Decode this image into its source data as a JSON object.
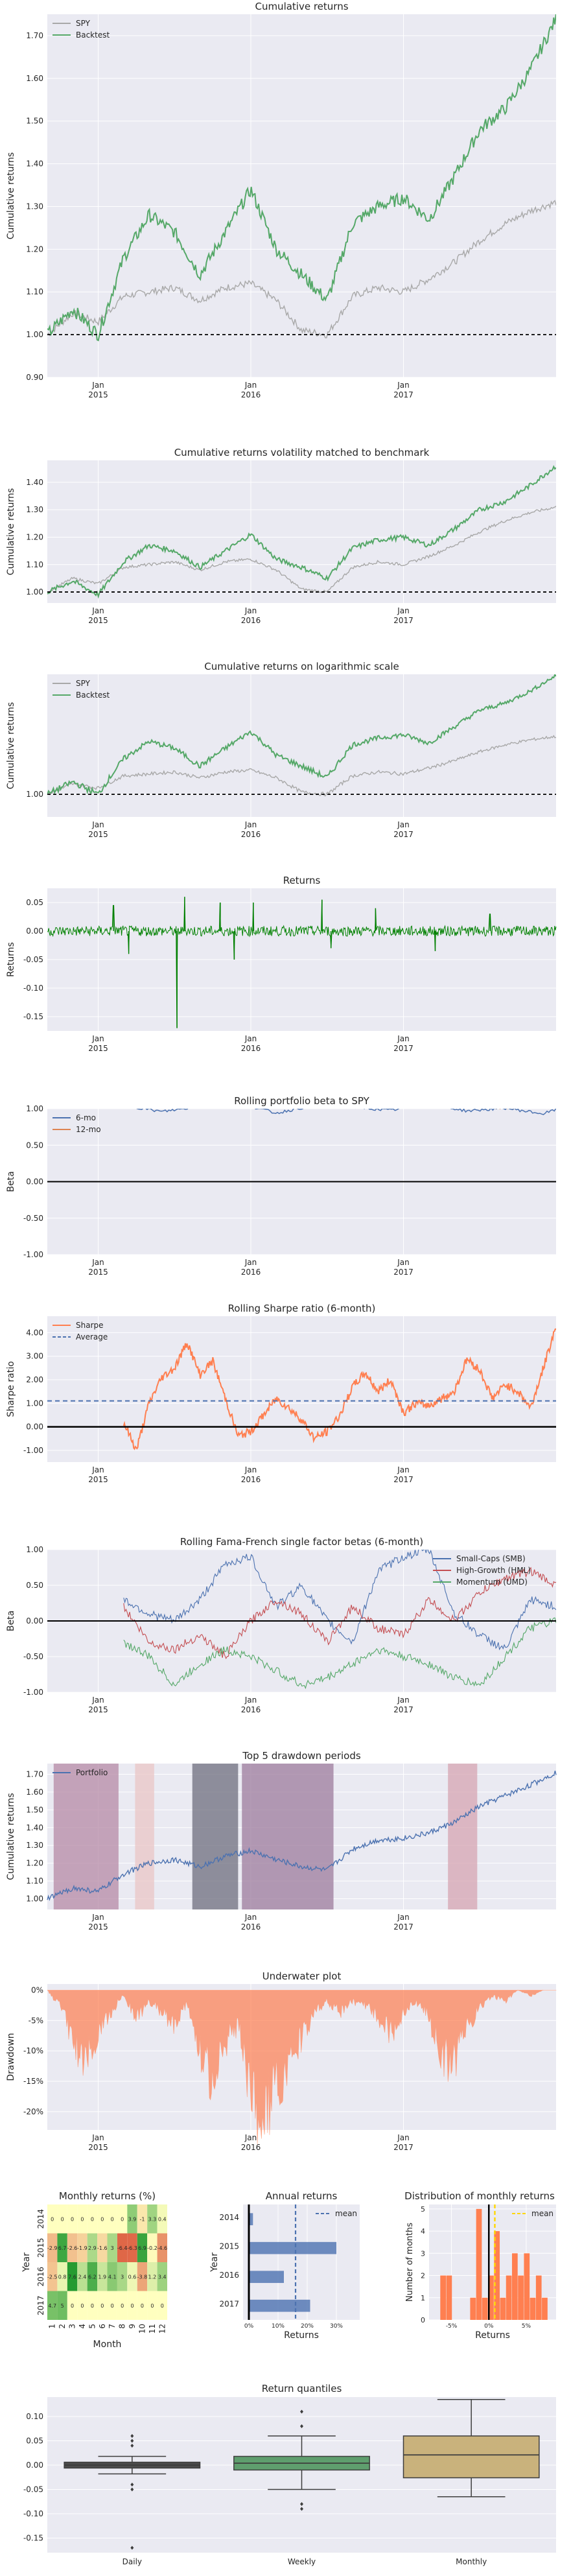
{
  "colors": {
    "plot_bg": "#eaeaf2",
    "grid": "#ffffff",
    "spy": "#a8a8a8",
    "backtest": "#55a868",
    "returns_line": "#008000",
    "beta6": "#4c72b0",
    "beta12": "#dd8452",
    "sharpe": "#ff7f50",
    "smb": "#4c72b0",
    "hml": "#c44e52",
    "umd": "#55a868",
    "portfolio": "#4c72b0",
    "underwater": "#ff7f50",
    "hist": "#ff7f50",
    "annual_bar": "#4c72b0",
    "mean_line": "#4c72b0",
    "hist_mean_line": "#ffd700",
    "box_daily": "#4c4c4c",
    "box_weekly": "#5f9e6e",
    "box_monthly": "#c9b27c"
  },
  "chart_data": [
    {
      "id": "cumret",
      "type": "line",
      "title": "Cumulative returns",
      "ylabel": "Cumulative returns",
      "xlabel": "",
      "x_ticks": [
        "Jan\n2015",
        "Jan\n2016",
        "Jan\n2017"
      ],
      "y_ticks": [
        "0.90",
        "1.00",
        "1.10",
        "1.20",
        "1.30",
        "1.40",
        "1.50",
        "1.60",
        "1.70"
      ],
      "ylim": [
        0.9,
        1.75
      ],
      "hline": 1.0,
      "legend": [
        "SPY",
        "Backtest"
      ],
      "legend_position": "upper-left",
      "x_months": [
        0,
        2,
        4,
        6,
        8,
        10,
        12,
        14,
        16,
        18,
        20,
        22,
        24,
        26,
        28,
        30,
        32,
        34,
        36,
        38,
        40
      ],
      "series": [
        {
          "name": "SPY",
          "values": [
            1.0,
            1.05,
            1.03,
            1.09,
            1.1,
            1.11,
            1.08,
            1.11,
            1.12,
            1.08,
            1.01,
            1.0,
            1.09,
            1.11,
            1.1,
            1.13,
            1.17,
            1.22,
            1.26,
            1.29,
            1.31
          ]
        },
        {
          "name": "Backtest",
          "values": [
            1.0,
            1.06,
            1.0,
            1.18,
            1.28,
            1.24,
            1.14,
            1.24,
            1.34,
            1.2,
            1.14,
            1.08,
            1.26,
            1.3,
            1.32,
            1.27,
            1.37,
            1.48,
            1.53,
            1.62,
            1.74
          ]
        }
      ]
    },
    {
      "id": "cumvol",
      "type": "line",
      "title": "Cumulative returns volatility matched to benchmark",
      "ylabel": "Cumulative returns",
      "x_ticks": [
        "Jan\n2015",
        "Jan\n2016",
        "Jan\n2017"
      ],
      "y_ticks": [
        "1.00",
        "1.10",
        "1.20",
        "1.30",
        "1.40"
      ],
      "ylim": [
        0.96,
        1.48
      ],
      "hline": 1.0,
      "x_months": [
        0,
        2,
        4,
        6,
        8,
        10,
        12,
        14,
        16,
        18,
        20,
        22,
        24,
        26,
        28,
        30,
        32,
        34,
        36,
        38,
        40
      ],
      "series": [
        {
          "name": "SPY",
          "values": [
            1.0,
            1.05,
            1.03,
            1.09,
            1.1,
            1.11,
            1.08,
            1.11,
            1.12,
            1.08,
            1.01,
            1.0,
            1.09,
            1.11,
            1.1,
            1.13,
            1.17,
            1.22,
            1.26,
            1.29,
            1.31
          ]
        },
        {
          "name": "Backtest",
          "values": [
            1.0,
            1.04,
            0.99,
            1.11,
            1.17,
            1.15,
            1.09,
            1.15,
            1.21,
            1.12,
            1.09,
            1.05,
            1.16,
            1.19,
            1.2,
            1.17,
            1.23,
            1.3,
            1.33,
            1.39,
            1.46
          ]
        }
      ]
    },
    {
      "id": "cumlog",
      "type": "line",
      "title": "Cumulative returns on logarithmic scale",
      "ylabel": "Cumulative returns",
      "x_ticks": [
        "Jan\n2015",
        "Jan\n2016",
        "Jan\n2017"
      ],
      "y_ticks": [
        "1.00"
      ],
      "ylim": [
        0.9,
        1.75
      ],
      "log_scale": true,
      "hline": 1.0,
      "legend": [
        "SPY",
        "Backtest"
      ],
      "legend_position": "upper-left",
      "x_months": [
        0,
        2,
        4,
        6,
        8,
        10,
        12,
        14,
        16,
        18,
        20,
        22,
        24,
        26,
        28,
        30,
        32,
        34,
        36,
        38,
        40
      ],
      "series": [
        {
          "name": "SPY",
          "values": [
            1.0,
            1.05,
            1.03,
            1.09,
            1.1,
            1.11,
            1.08,
            1.11,
            1.12,
            1.08,
            1.01,
            1.0,
            1.09,
            1.11,
            1.1,
            1.13,
            1.17,
            1.22,
            1.26,
            1.29,
            1.31
          ]
        },
        {
          "name": "Backtest",
          "values": [
            1.0,
            1.06,
            1.0,
            1.18,
            1.28,
            1.24,
            1.14,
            1.24,
            1.34,
            1.2,
            1.14,
            1.08,
            1.26,
            1.3,
            1.32,
            1.27,
            1.37,
            1.48,
            1.53,
            1.62,
            1.74
          ]
        }
      ]
    },
    {
      "id": "returns",
      "type": "line",
      "title": "Returns",
      "ylabel": "Returns",
      "x_ticks": [
        "Jan\n2015",
        "Jan\n2016",
        "Jan\n2017"
      ],
      "y_ticks": [
        "-0.15",
        "-0.10",
        "-0.05",
        "0.00",
        "0.05"
      ],
      "ylim": [
        -0.175,
        0.075
      ],
      "spikes": [
        [
          5.2,
          0.045
        ],
        [
          6.4,
          -0.04
        ],
        [
          10.2,
          -0.17
        ],
        [
          10.8,
          0.06
        ],
        [
          13.6,
          0.05
        ],
        [
          14.7,
          -0.05
        ],
        [
          16.2,
          0.05
        ],
        [
          21.6,
          0.055
        ],
        [
          22.3,
          -0.03
        ],
        [
          25.8,
          0.04
        ],
        [
          30.5,
          -0.035
        ],
        [
          34.8,
          0.03
        ]
      ]
    },
    {
      "id": "beta",
      "type": "line",
      "title": "Rolling portfolio beta to SPY",
      "ylabel": "Beta",
      "x_ticks": [
        "Jan\n2015",
        "Jan\n2016",
        "Jan\n2017"
      ],
      "y_ticks": [
        "-1.00",
        "-0.50",
        "0.00",
        "0.50",
        "1.00"
      ],
      "ylim": [
        -1.0,
        1.0
      ],
      "hline": 0.0,
      "legend": [
        "6-mo",
        "12-mo"
      ],
      "legend_position": "upper-left",
      "x_months": [
        6,
        9,
        12,
        15,
        18,
        21,
        24,
        27,
        30,
        33,
        36,
        39,
        40
      ],
      "series": [
        {
          "name": "6-mo",
          "values": [
            1.05,
            0.96,
            1.03,
            1.08,
            0.94,
            1.05,
            1.02,
            0.98,
            1.06,
            0.97,
            1.01,
            0.93,
            0.99
          ]
        },
        {
          "name": "12-mo",
          "values": [
            1.06,
            1.05,
            1.04,
            1.07,
            1.05,
            1.03,
            1.06,
            1.04,
            1.05,
            1.03,
            1.02,
            1.04,
            1.03
          ]
        }
      ]
    },
    {
      "id": "sharpe",
      "type": "line",
      "title": "Rolling Sharpe ratio (6-month)",
      "ylabel": "Sharpe ratio",
      "x_ticks": [
        "Jan\n2015",
        "Jan\n2016",
        "Jan\n2017"
      ],
      "y_ticks": [
        "-1.00",
        "0.00",
        "1.00",
        "2.00",
        "3.00",
        "4.00"
      ],
      "ylim": [
        -1.5,
        4.7
      ],
      "hline": 0.0,
      "average": 1.1,
      "legend": [
        "Sharpe",
        "Average"
      ],
      "legend_position": "upper-left",
      "x_months": [
        6,
        7,
        8,
        9,
        10,
        11,
        12,
        13,
        14,
        15,
        16,
        17,
        18,
        19,
        20,
        21,
        22,
        23,
        24,
        25,
        26,
        27,
        28,
        29,
        30,
        31,
        32,
        33,
        34,
        35,
        36,
        37,
        38,
        39,
        40
      ],
      "series": [
        {
          "name": "Sharpe",
          "values": [
            0.2,
            -1.0,
            1.0,
            2.1,
            2.5,
            3.6,
            2.2,
            2.8,
            1.2,
            -0.4,
            -0.2,
            0.5,
            1.2,
            0.8,
            0.3,
            -0.5,
            -0.2,
            0.5,
            1.7,
            2.3,
            1.5,
            2.0,
            0.6,
            1.0,
            0.9,
            1.2,
            1.5,
            2.9,
            2.4,
            1.2,
            1.8,
            1.5,
            0.8,
            2.5,
            4.3
          ]
        }
      ]
    },
    {
      "id": "famafrench",
      "type": "line",
      "title": "Rolling Fama-French single factor betas (6-month)",
      "ylabel": "Beta",
      "x_ticks": [
        "Jan\n2015",
        "Jan\n2016",
        "Jan\n2017"
      ],
      "y_ticks": [
        "-1.00",
        "-0.50",
        "0.00",
        "0.50",
        "1.00"
      ],
      "ylim": [
        -1.0,
        1.0
      ],
      "hline": 0.0,
      "legend": [
        "Small-Caps (SMB)",
        "High-Growth (HML)",
        "Momentum (UMD)"
      ],
      "legend_position": "upper-right",
      "x_months": [
        6,
        8,
        10,
        12,
        14,
        16,
        18,
        20,
        22,
        24,
        26,
        28,
        30,
        32,
        34,
        36,
        38,
        40
      ],
      "series": [
        {
          "name": "Small-Caps (SMB)",
          "values": [
            0.3,
            0.1,
            0.0,
            0.3,
            0.8,
            0.9,
            0.2,
            0.5,
            0.0,
            -0.3,
            0.7,
            0.9,
            1.0,
            0.1,
            -0.2,
            -0.4,
            0.3,
            0.2
          ]
        },
        {
          "name": "High-Growth (HML)",
          "values": [
            0.2,
            -0.3,
            -0.4,
            -0.2,
            -0.5,
            0.0,
            0.3,
            0.1,
            -0.3,
            0.2,
            -0.1,
            -0.2,
            0.3,
            0.0,
            0.4,
            0.6,
            0.7,
            0.5
          ]
        },
        {
          "name": "Momentum (UMD)",
          "values": [
            -0.3,
            -0.5,
            -0.9,
            -0.6,
            -0.4,
            -0.5,
            -0.7,
            -0.9,
            -0.8,
            -0.6,
            -0.4,
            -0.5,
            -0.6,
            -0.8,
            -0.9,
            -0.5,
            -0.1,
            0.0
          ]
        }
      ]
    },
    {
      "id": "drawdowns",
      "type": "line",
      "title": "Top 5 drawdown periods",
      "ylabel": "Cumulative returns",
      "x_ticks": [
        "Jan\n2015",
        "Jan\n2016",
        "Jan\n2017"
      ],
      "y_ticks": [
        "1.00",
        "1.10",
        "1.20",
        "1.30",
        "1.40",
        "1.50",
        "1.60",
        "1.70"
      ],
      "ylim": [
        0.94,
        1.76
      ],
      "legend": [
        "Portfolio"
      ],
      "legend_position": "upper-left",
      "shaded_periods_months": [
        [
          0.5,
          5.6
        ],
        [
          6.9,
          8.4
        ],
        [
          11.4,
          15.0
        ],
        [
          15.3,
          22.5
        ],
        [
          31.5,
          33.8
        ]
      ],
      "shade_colors": [
        "#b58aa6",
        "#e9c5c5",
        "#6e6e7e",
        "#9c7b9c",
        "#d6a4b2"
      ],
      "x_months": [
        0,
        2,
        4,
        6,
        8,
        10,
        12,
        14,
        16,
        18,
        20,
        22,
        24,
        26,
        28,
        30,
        32,
        34,
        36,
        38,
        40
      ],
      "series": [
        {
          "name": "Portfolio",
          "values": [
            1.0,
            1.06,
            1.04,
            1.14,
            1.2,
            1.22,
            1.18,
            1.24,
            1.27,
            1.22,
            1.18,
            1.16,
            1.28,
            1.33,
            1.34,
            1.37,
            1.43,
            1.52,
            1.58,
            1.64,
            1.71
          ]
        }
      ]
    },
    {
      "id": "underwater",
      "type": "area",
      "title": "Underwater plot",
      "ylabel": "Drawdown",
      "x_ticks": [
        "Jan\n2015",
        "Jan\n2016",
        "Jan\n2017"
      ],
      "y_ticks": [
        "0%",
        "-5%",
        "-10%",
        "-15%",
        "-20%"
      ],
      "ylim": [
        -0.23,
        0.01
      ],
      "x_months": [
        0,
        1,
        2,
        3,
        4,
        5,
        6,
        7,
        8,
        9,
        10,
        11,
        12,
        13,
        14,
        15,
        16,
        17,
        18,
        19,
        20,
        21,
        22,
        23,
        24,
        25,
        26,
        27,
        28,
        29,
        30,
        31,
        32,
        33,
        34,
        35,
        36,
        37,
        38,
        39,
        40
      ],
      "values": [
        0.0,
        -0.03,
        -0.09,
        -0.13,
        -0.08,
        -0.04,
        -0.01,
        -0.05,
        -0.02,
        -0.04,
        -0.07,
        -0.02,
        -0.12,
        -0.16,
        -0.1,
        -0.06,
        -0.2,
        -0.23,
        -0.18,
        -0.15,
        -0.09,
        -0.04,
        -0.02,
        -0.04,
        -0.02,
        -0.03,
        -0.05,
        -0.08,
        -0.04,
        -0.02,
        -0.05,
        -0.12,
        -0.14,
        -0.07,
        -0.03,
        -0.01,
        -0.02,
        0.0,
        -0.01,
        0.0,
        0.0
      ]
    },
    {
      "id": "monthly_heatmap",
      "type": "heatmap",
      "title": "Monthly returns (%)",
      "ylabel": "Year",
      "xlabel": "Month",
      "years": [
        "2014",
        "2015",
        "2016",
        "2017"
      ],
      "months": [
        "1",
        "2",
        "3",
        "4",
        "5",
        "6",
        "7",
        "8",
        "9",
        "10",
        "11",
        "12"
      ],
      "values": [
        [
          0.0,
          0.0,
          0.0,
          0.0,
          0.0,
          0.0,
          0.0,
          0.0,
          3.9,
          -1.0,
          3.3,
          0.4
        ],
        [
          -2.9,
          6.7,
          -2.6,
          -1.9,
          2.9,
          -1.6,
          3.0,
          -6.4,
          -6.3,
          6.9,
          -0.2,
          -4.6
        ],
        [
          -2.5,
          0.8,
          7.6,
          2.4,
          6.2,
          1.9,
          4.1,
          3.0,
          0.6,
          -3.8,
          1.2,
          3.4
        ],
        [
          4.7,
          5.0,
          0.0,
          0.0,
          0.0,
          0.0,
          0.0,
          0.0,
          0.0,
          0.0,
          0.0,
          0.0
        ]
      ],
      "labels": [
        [
          "0",
          "0",
          "0",
          "0",
          "0",
          "0",
          "0",
          "0",
          "3.9",
          "-1",
          "3.3",
          "0.4"
        ],
        [
          "-2.9",
          "6.7",
          "-2.6",
          "-1.9",
          "2.9",
          "-1.6",
          "3",
          "-6.4",
          "-6.3",
          "6.9",
          "-0.2",
          "-4.6"
        ],
        [
          "-2.5",
          "0.8",
          "7.6",
          "2.4",
          "6.2",
          "1.9",
          "4.1",
          "3",
          "0.6",
          "-3.8",
          "1.2",
          "3.4"
        ],
        [
          "4.7",
          "5",
          "0",
          "0",
          "0",
          "0",
          "0",
          "0",
          "0",
          "0",
          "0",
          "0"
        ]
      ]
    },
    {
      "id": "annual_returns",
      "type": "bar",
      "title": "Annual returns",
      "ylabel": "Year",
      "xlabel": "Returns",
      "categories": [
        "2014",
        "2015",
        "2016",
        "2017"
      ],
      "values": [
        0.014,
        0.3,
        0.12,
        0.21
      ],
      "mean": 0.16,
      "xlim": [
        -0.02,
        0.38
      ],
      "x_ticks": [
        "0%",
        "10%",
        "20%",
        "30%"
      ],
      "legend": [
        "mean"
      ]
    },
    {
      "id": "monthly_dist",
      "type": "bar",
      "title": "Distribution of monthly returns",
      "ylabel": "Number of months",
      "xlabel": "Returns",
      "x_ticks": [
        "-5%",
        "0%",
        "5%"
      ],
      "y_ticks": [
        "0",
        "1",
        "2",
        "3",
        "4",
        "5"
      ],
      "ylim": [
        0,
        5.2
      ],
      "xlim": [
        -0.08,
        0.09
      ],
      "mean": 0.008,
      "legend": [
        "mean"
      ],
      "bins": [
        -0.065,
        -0.057,
        -0.049,
        -0.041,
        -0.033,
        -0.025,
        -0.017,
        -0.009,
        -0.001,
        0.007,
        0.015,
        0.023,
        0.031,
        0.039,
        0.047,
        0.055,
        0.063,
        0.071,
        0.079
      ],
      "counts": [
        2,
        2,
        0,
        0,
        0,
        1,
        5,
        1,
        2,
        4,
        1,
        2,
        3,
        2,
        3,
        1,
        2,
        1
      ]
    },
    {
      "id": "quantiles",
      "type": "bar",
      "title": "Return quantiles",
      "categories": [
        "Daily",
        "Weekly",
        "Monthly"
      ],
      "y_ticks": [
        "-0.15",
        "-0.10",
        "-0.05",
        "0.00",
        "0.05",
        "0.10"
      ],
      "ylim": [
        -0.18,
        0.14
      ],
      "boxes": [
        {
          "q1": -0.006,
          "median": 0.0,
          "q3": 0.006,
          "low": -0.018,
          "high": 0.018,
          "outliers": [
            -0.17,
            -0.05,
            -0.04,
            0.04,
            0.05,
            0.06
          ]
        },
        {
          "q1": -0.01,
          "median": 0.004,
          "q3": 0.018,
          "low": -0.05,
          "high": 0.06,
          "outliers": [
            -0.09,
            -0.08,
            0.08,
            0.11
          ]
        },
        {
          "q1": -0.026,
          "median": 0.021,
          "q3": 0.06,
          "low": -0.065,
          "high": 0.135,
          "outliers": []
        }
      ]
    }
  ]
}
